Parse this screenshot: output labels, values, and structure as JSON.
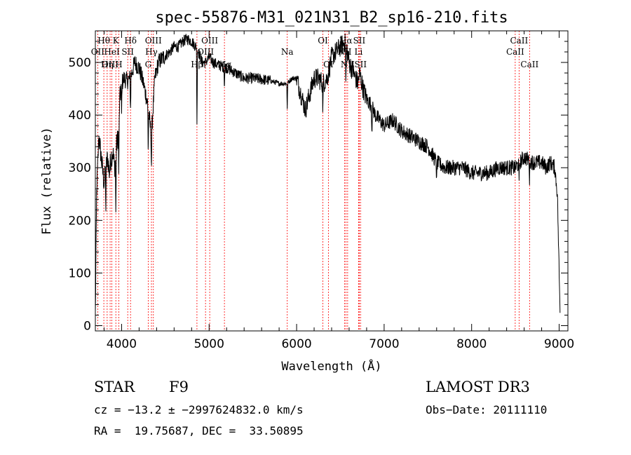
{
  "chart_data": {
    "type": "line",
    "title": "spec-55876-M31_021N31_B2_sp16-210.fits",
    "xlabel": "Wavelength (Å)",
    "ylabel": "Flux (relative)",
    "xlim": [
      3700,
      9100
    ],
    "ylim": [
      -10,
      560
    ],
    "x_ticks": [
      4000,
      5000,
      6000,
      7000,
      8000,
      9000
    ],
    "x_tick_labels": [
      "4000",
      "5000",
      "6000",
      "7000",
      "8000",
      "9000"
    ],
    "y_ticks": [
      0,
      100,
      200,
      300,
      400,
      500
    ],
    "y_tick_labels": [
      "0",
      "100",
      "200",
      "300",
      "400",
      "500"
    ],
    "line_color": "#ff0000",
    "spectrum_anchors": {
      "x": [
        3700,
        3715,
        3740,
        3760,
        3780,
        3800,
        3820,
        3840,
        3860,
        3880,
        3900,
        3920,
        3940,
        3960,
        3980,
        4000,
        4030,
        4060,
        4100,
        4150,
        4200,
        4250,
        4300,
        4340,
        4380,
        4420,
        4480,
        4550,
        4600,
        4650,
        4700,
        4750,
        4800,
        4850,
        4880,
        4920,
        4960,
        5000,
        5050,
        5100,
        5200,
        5300,
        5400,
        5500,
        5600,
        5700,
        5800,
        5890,
        5950,
        6000,
        6050,
        6100,
        6150,
        6200,
        6250,
        6300,
        6350,
        6400,
        6450,
        6500,
        6560,
        6600,
        6650,
        6700,
        6720,
        6760,
        6800,
        6850,
        6900,
        7000,
        7100,
        7200,
        7300,
        7400,
        7500,
        7600,
        7700,
        7800,
        7900,
        8000,
        8100,
        8200,
        8300,
        8400,
        8500,
        8600,
        8700,
        8800,
        8850,
        8900,
        8950,
        8980,
        9000,
        9010
      ],
      "y": [
        20,
        250,
        360,
        330,
        300,
        270,
        300,
        320,
        290,
        320,
        330,
        300,
        340,
        360,
        430,
        460,
        470,
        465,
        470,
        500,
        490,
        460,
        420,
        360,
        470,
        500,
        510,
        520,
        530,
        530,
        540,
        545,
        540,
        530,
        520,
        500,
        500,
        510,
        500,
        495,
        490,
        480,
        470,
        470,
        468,
        465,
        460,
        460,
        470,
        470,
        440,
        410,
        440,
        470,
        470,
        460,
        470,
        510,
        520,
        530,
        540,
        500,
        480,
        460,
        480,
        450,
        430,
        420,
        400,
        380,
        390,
        370,
        360,
        350,
        340,
        310,
        300,
        300,
        300,
        290,
        290,
        290,
        300,
        300,
        300,
        320,
        310,
        310,
        300,
        310,
        300,
        250,
        100,
        30
      ]
    },
    "lines": [
      {
        "name": "Hθ",
        "x": 3797,
        "row": 1
      },
      {
        "name": "OII",
        "x": 3727,
        "row": 2
      },
      {
        "name": "OIII",
        "x": 3869,
        "row": 3
      },
      {
        "name": "K",
        "x": 3934,
        "row": 1
      },
      {
        "name": "HeI",
        "x": 3889,
        "row": 2
      },
      {
        "name": "Hη",
        "x": 3835,
        "row": 3
      },
      {
        "name": "SII",
        "x": 4070,
        "row": 2
      },
      {
        "name": "H",
        "x": 3968,
        "row": 3
      },
      {
        "name": "Hδ",
        "x": 4102,
        "row": 1
      },
      {
        "name": "OIII",
        "x": 4363,
        "row": 1
      },
      {
        "name": "Hγ",
        "x": 4341,
        "row": 2
      },
      {
        "name": "G",
        "x": 4304,
        "row": 3
      },
      {
        "name": "OIII",
        "x": 5007,
        "row": 1
      },
      {
        "name": "OIII",
        "x": 4959,
        "row": 2
      },
      {
        "name": "Hβ",
        "x": 4861,
        "row": 3
      },
      {
        "name": "Mg",
        "x": 5175,
        "row": 3
      },
      {
        "name": "Na",
        "x": 5893,
        "row": 2
      },
      {
        "name": "OI",
        "x": 6300,
        "row": 1
      },
      {
        "name": "OI",
        "x": 6363,
        "row": 3
      },
      {
        "name": "Hα",
        "x": 6563,
        "row": 1
      },
      {
        "name": "NII",
        "x": 6548,
        "row": 2
      },
      {
        "name": "NII",
        "x": 6583,
        "row": 3
      },
      {
        "name": "SII",
        "x": 6716,
        "row": 1
      },
      {
        "name": "Li",
        "x": 6708,
        "row": 2
      },
      {
        "name": "SII",
        "x": 6731,
        "row": 3
      },
      {
        "name": "CaII",
        "x": 8542,
        "row": 1
      },
      {
        "name": "CaII",
        "x": 8498,
        "row": 2
      },
      {
        "name": "CaII",
        "x": 8662,
        "row": 3
      }
    ]
  },
  "footer": {
    "object_type": "STAR",
    "subclass": "F9",
    "survey": "LAMOST DR3",
    "redshift": "cz = −13.2 ± −2997624832.0 km/s",
    "obs_date": "Obs−Date: 20111110",
    "coords": "RA =  19.75687, DEC =  33.50895"
  }
}
